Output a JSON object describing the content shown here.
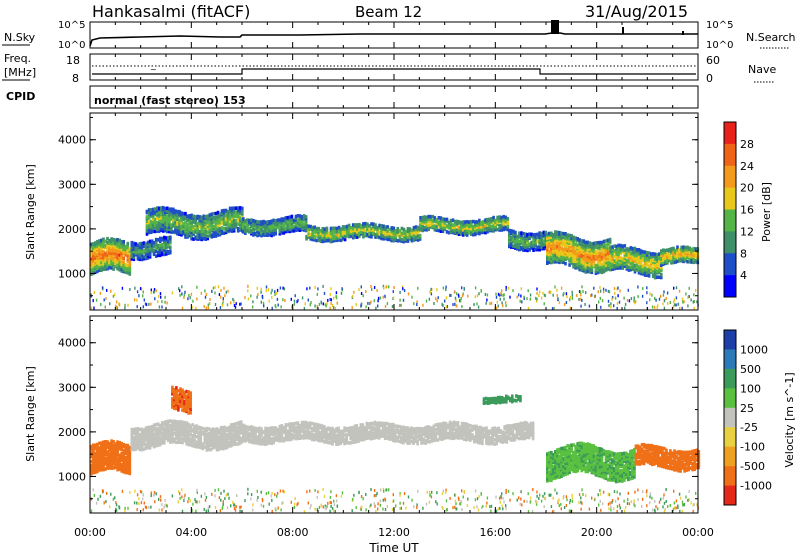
{
  "header": {
    "station": "Hankasalmi (fitACF)",
    "beam": "Beam 12",
    "date": "31/Aug/2015"
  },
  "noise_panel": {
    "left_label": "N.Sky",
    "right_label": "N.Search",
    "left_ticks": [
      "10^5",
      "10^0"
    ],
    "right_ticks": [
      "10^5",
      "10^0"
    ]
  },
  "freq_panel": {
    "left_label_line1": "Freq.",
    "left_label_line2": "[MHz]",
    "right_label": "Nave",
    "left_ticks": [
      "18",
      "8"
    ],
    "right_ticks": [
      "60",
      "0"
    ]
  },
  "cpid": {
    "label": "CPID",
    "text": "normal (fast stereo) 153"
  },
  "colors": {
    "power_scale": [
      "#0000ff",
      "#1f4fc8",
      "#3f8f6a",
      "#55b447",
      "#e8c81a",
      "#f3991c",
      "#f06418",
      "#e8221a"
    ],
    "velocity_scale": [
      "#1e3fa8",
      "#2e7ab8",
      "#3c9a5a",
      "#5ac040",
      "#c3c3bd",
      "#e8d040",
      "#f0a020",
      "#f07018",
      "#e62818"
    ],
    "ground_scatter": "#c3c3bd"
  },
  "chart_data": [
    {
      "type": "heatmap",
      "name": "power",
      "xlabel": "Time UT",
      "ylabel": "Slant Range [km]",
      "x_ticks": [
        "00:00",
        "04:00",
        "08:00",
        "12:00",
        "16:00",
        "20:00",
        "00:00"
      ],
      "y_ticks": [
        1000,
        2000,
        3000,
        4000
      ],
      "ylim": [
        180,
        4600
      ],
      "xlim_hours": [
        0,
        24
      ],
      "colorbar_label": "Power [dB]",
      "colorbar_ticks": [
        4,
        8,
        12,
        16,
        20,
        24,
        28
      ],
      "bands": [
        {
          "t0": 0.0,
          "t1": 1.6,
          "center": 1300,
          "width": 700,
          "value": 26
        },
        {
          "t0": 1.6,
          "t1": 3.2,
          "center": 1550,
          "width": 400,
          "value": 12
        },
        {
          "t0": 2.2,
          "t1": 6.0,
          "center": 2100,
          "width": 550,
          "value": 16
        },
        {
          "t0": 6.0,
          "t1": 8.5,
          "center": 2050,
          "width": 350,
          "value": 14
        },
        {
          "t0": 8.5,
          "t1": 13.0,
          "center": 1900,
          "width": 320,
          "value": 18
        },
        {
          "t0": 13.0,
          "t1": 16.5,
          "center": 2050,
          "width": 320,
          "value": 18
        },
        {
          "t0": 16.5,
          "t1": 18.0,
          "center": 1750,
          "width": 400,
          "value": 14
        },
        {
          "t0": 18.0,
          "t1": 20.5,
          "center": 1450,
          "width": 700,
          "value": 24
        },
        {
          "t0": 20.5,
          "t1": 22.5,
          "center": 1250,
          "width": 550,
          "value": 20
        },
        {
          "t0": 22.5,
          "t1": 24.0,
          "center": 1350,
          "width": 350,
          "value": 22
        }
      ]
    },
    {
      "type": "heatmap",
      "name": "velocity",
      "xlabel": "Time UT",
      "ylabel": "Slant Range [km]",
      "x_ticks": [
        "00:00",
        "04:00",
        "08:00",
        "12:00",
        "16:00",
        "20:00",
        "00:00"
      ],
      "y_ticks": [
        1000,
        2000,
        3000,
        4000
      ],
      "ylim": [
        180,
        4600
      ],
      "xlim_hours": [
        0,
        24
      ],
      "colorbar_label": "Velocity [m s^-1]",
      "colorbar_ticks": [
        "1000",
        "500",
        "100",
        "25",
        "-25",
        "-100",
        "-500",
        "-1000"
      ],
      "bands": [
        {
          "t0": 0.0,
          "t1": 1.6,
          "center": 1350,
          "width": 650,
          "value": -300
        },
        {
          "t0": 1.6,
          "t1": 6.0,
          "center": 1900,
          "width": 500,
          "value": 0
        },
        {
          "t0": 3.2,
          "t1": 4.0,
          "center": 2700,
          "width": 500,
          "value": -400
        },
        {
          "t0": 6.0,
          "t1": 17.5,
          "center": 1950,
          "width": 380,
          "value": 0
        },
        {
          "t0": 15.5,
          "t1": 17.0,
          "center": 2700,
          "width": 150,
          "value": 200
        },
        {
          "t0": 18.0,
          "t1": 21.5,
          "center": 1300,
          "width": 650,
          "value": 80
        },
        {
          "t0": 21.5,
          "t1": 24.0,
          "center": 1400,
          "width": 450,
          "value": -200
        }
      ]
    }
  ]
}
